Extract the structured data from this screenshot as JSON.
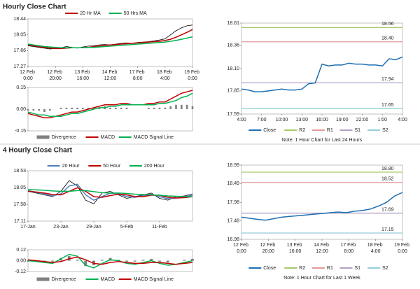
{
  "chart_data": [
    {
      "type": "line",
      "title": "Hourly Close Chart",
      "legend": "top",
      "xlim": [
        0,
        120
      ],
      "x": [
        0,
        4,
        8,
        12,
        16,
        20,
        24,
        28,
        32,
        36,
        40,
        44,
        48,
        52,
        56,
        60,
        64,
        68,
        72,
        76,
        80,
        84,
        88,
        92,
        96,
        100,
        104,
        108,
        112,
        116,
        120
      ],
      "xticks": [
        {
          "value": 0,
          "label": "12 Feb 0:00"
        },
        {
          "value": 20,
          "label": "12 Feb 20:00"
        },
        {
          "value": 40,
          "label": "13 Feb 16:00"
        },
        {
          "value": 60,
          "label": "14 Feb 12:00"
        },
        {
          "value": 80,
          "label": "17 Feb 8:00"
        },
        {
          "value": 100,
          "label": "18 Feb 4:00"
        },
        {
          "value": 120,
          "label": "19 Feb 0:00"
        }
      ],
      "ylim": [
        17.27,
        18.44
      ],
      "yticks": [
        17.27,
        17.66,
        18.05,
        18.44
      ],
      "series": [
        {
          "color": "#000000",
          "values": [
            17.78,
            17.76,
            17.74,
            17.72,
            17.7,
            17.71,
            17.73,
            17.76,
            17.74,
            17.72,
            17.75,
            17.77,
            17.78,
            17.8,
            17.81,
            17.8,
            17.82,
            17.84,
            17.85,
            17.84,
            17.86,
            17.87,
            17.88,
            17.9,
            17.92,
            17.95,
            18.05,
            18.15,
            18.22,
            18.27,
            18.29
          ]
        },
        {
          "name": "20 Hr MA",
          "color": "#c00000",
          "values": [
            17.8,
            17.78,
            17.76,
            17.74,
            17.72,
            17.71,
            17.71,
            17.72,
            17.73,
            17.73,
            17.73,
            17.74,
            17.76,
            17.77,
            17.79,
            17.8,
            17.81,
            17.82,
            17.83,
            17.84,
            17.85,
            17.86,
            17.87,
            17.88,
            17.89,
            17.91,
            17.94,
            17.99,
            18.05,
            18.11,
            18.18
          ]
        },
        {
          "name": "50 Hrs MA",
          "color": "#00b050",
          "values": [
            17.82,
            17.8,
            17.78,
            17.76,
            17.75,
            17.74,
            17.73,
            17.73,
            17.73,
            17.73,
            17.73,
            17.74,
            17.74,
            17.75,
            17.76,
            17.77,
            17.78,
            17.79,
            17.8,
            17.81,
            17.82,
            17.83,
            17.84,
            17.85,
            17.86,
            17.87,
            17.89,
            17.91,
            17.94,
            17.97,
            18.0
          ]
        }
      ]
    },
    {
      "type": "line",
      "legend": "bottom",
      "xlim": [
        0,
        120
      ],
      "x": [
        0,
        4,
        8,
        12,
        16,
        20,
        24,
        28,
        32,
        36,
        40,
        44,
        48,
        52,
        56,
        60,
        64,
        68,
        72,
        76,
        80,
        84,
        88,
        92,
        96,
        100,
        104,
        108,
        112,
        116,
        120
      ],
      "ylim": [
        -0.15,
        0.15
      ],
      "yticks": [
        -0.15,
        {
          "value": 0,
          "label": "0.00"
        },
        0.15
      ],
      "series": [
        {
          "name": "Divergence",
          "style": "bar",
          "color": "#808080",
          "values": [
            -0.01,
            -0.01,
            -0.01,
            -0.02,
            -0.01,
            0,
            0.01,
            0.01,
            0.01,
            0.01,
            0.01,
            0.01,
            0.01,
            0.01,
            0.02,
            0.01,
            0.01,
            0.01,
            0.01,
            0,
            0,
            0,
            0.01,
            0.01,
            0.01,
            0.01,
            0.02,
            0.03,
            0.03,
            0.03,
            0.02
          ]
        },
        {
          "name": "MACD",
          "color": "#c00000",
          "values": [
            -0.03,
            -0.04,
            -0.05,
            -0.06,
            -0.06,
            -0.05,
            -0.04,
            -0.03,
            -0.02,
            -0.02,
            -0.01,
            0,
            0.01,
            0.02,
            0.03,
            0.03,
            0.03,
            0.04,
            0.04,
            0.03,
            0.03,
            0.03,
            0.04,
            0.04,
            0.05,
            0.05,
            0.07,
            0.09,
            0.11,
            0.12,
            0.13
          ]
        },
        {
          "name": "MACD Signal Line",
          "color": "#00b050",
          "values": [
            -0.02,
            -0.03,
            -0.04,
            -0.04,
            -0.05,
            -0.05,
            -0.05,
            -0.04,
            -0.03,
            -0.03,
            -0.02,
            -0.01,
            0,
            0.01,
            0.01,
            0.02,
            0.02,
            0.03,
            0.03,
            0.03,
            0.03,
            0.03,
            0.03,
            0.03,
            0.04,
            0.04,
            0.05,
            0.06,
            0.08,
            0.09,
            0.11
          ]
        }
      ]
    },
    {
      "type": "line",
      "legend": "bottom",
      "note": "Note: 1 Hour Chart for Last 24 Hours",
      "xlim": [
        0,
        24
      ],
      "x": [
        0,
        1,
        2,
        3,
        4,
        5,
        6,
        7,
        8,
        9,
        10,
        11,
        12,
        13,
        14,
        15,
        16,
        17,
        18,
        19,
        20,
        21,
        22,
        23,
        24
      ],
      "xticks": [
        {
          "value": 0,
          "label": "4:00"
        },
        {
          "value": 3,
          "label": "7:00"
        },
        {
          "value": 6,
          "label": "10:00"
        },
        {
          "value": 9,
          "label": "13:00"
        },
        {
          "value": 12,
          "label": "16:00"
        },
        {
          "value": 15,
          "label": "19:00"
        },
        {
          "value": 18,
          "label": "22:00"
        },
        {
          "value": 21,
          "label": "1:00"
        },
        {
          "value": 24,
          "label": "4:00"
        }
      ],
      "ylim": [
        17.59,
        18.61
      ],
      "yticks": [
        17.59,
        17.85,
        {
          "value": 18.1,
          "label": "18.10"
        },
        18.36,
        18.61
      ],
      "series": [
        {
          "name": "Close",
          "color": "#1f6fb2",
          "values": [
            17.87,
            17.86,
            17.84,
            17.84,
            17.85,
            17.86,
            17.87,
            17.86,
            17.86,
            17.87,
            17.93,
            17.94,
            18.15,
            18.13,
            18.14,
            18.14,
            18.16,
            18.15,
            18.15,
            18.14,
            18.14,
            18.13,
            18.21,
            18.2,
            18.23
          ]
        }
      ],
      "levels": [
        {
          "name": "R2",
          "color": "#a6c96a",
          "value": 18.56,
          "value_label": "18.56"
        },
        {
          "name": "R1",
          "color": "#e39a9a",
          "value": 18.4,
          "value_label": "18.40"
        },
        {
          "name": "S1",
          "color": "#b3a2c7",
          "value": 17.94,
          "value_label": "17.94"
        },
        {
          "name": "S2",
          "color": "#93cddd",
          "value": 17.65,
          "value_label": "17.65"
        }
      ]
    },
    {
      "type": "line",
      "title": "4 Hourly Close Chart",
      "legend": "top",
      "xlim": [
        0,
        120
      ],
      "x": [
        0,
        6,
        12,
        18,
        24,
        30,
        36,
        42,
        48,
        54,
        60,
        66,
        72,
        78,
        84,
        90,
        96,
        102,
        108,
        114,
        120
      ],
      "xticks": [
        {
          "value": 0,
          "label": "17-Jan"
        },
        {
          "value": 24,
          "label": "23-Jan"
        },
        {
          "value": 48,
          "label": "29-Jan"
        },
        {
          "value": 72,
          "label": "5-Feb"
        },
        {
          "value": 96,
          "label": "11-Feb"
        }
      ],
      "ylim": [
        17.11,
        18.53
      ],
      "yticks": [
        17.11,
        17.58,
        18.05,
        18.53
      ],
      "series": [
        {
          "color": "#000000",
          "values": [
            17.95,
            17.9,
            17.85,
            17.8,
            17.95,
            18.25,
            18.1,
            17.7,
            17.6,
            17.9,
            17.95,
            17.85,
            17.75,
            17.8,
            17.85,
            17.9,
            17.75,
            17.7,
            17.8,
            17.82,
            17.88
          ]
        },
        {
          "name": "20 Hour",
          "color": "#4f81bd",
          "values": [
            17.97,
            17.92,
            17.87,
            17.82,
            17.88,
            18.1,
            18.15,
            17.85,
            17.7,
            17.8,
            17.9,
            17.88,
            17.8,
            17.78,
            17.83,
            17.87,
            17.8,
            17.74,
            17.76,
            17.8,
            17.84
          ]
        },
        {
          "name": "50 Hour",
          "color": "#c00000",
          "values": [
            17.95,
            17.93,
            17.9,
            17.86,
            17.85,
            17.95,
            18.05,
            17.95,
            17.8,
            17.78,
            17.83,
            17.87,
            17.85,
            17.8,
            17.8,
            17.84,
            17.84,
            17.78,
            17.76,
            17.77,
            17.8
          ]
        },
        {
          "name": "200 Hour",
          "color": "#00b050",
          "values": [
            18.0,
            17.99,
            17.98,
            17.96,
            17.95,
            17.95,
            17.97,
            17.97,
            17.94,
            17.91,
            17.9,
            17.9,
            17.89,
            17.87,
            17.86,
            17.85,
            17.84,
            17.82,
            17.81,
            17.8,
            17.8
          ]
        }
      ]
    },
    {
      "type": "line",
      "legend": "bottom",
      "xlim": [
        0,
        120
      ],
      "x": [
        0,
        6,
        12,
        18,
        24,
        30,
        36,
        42,
        48,
        54,
        60,
        66,
        72,
        78,
        84,
        90,
        96,
        102,
        108,
        114,
        120
      ],
      "ylim": [
        -0.12,
        0.12
      ],
      "yticks": [
        -0.12,
        {
          "value": 0,
          "label": "0.00"
        },
        0.12
      ],
      "series": [
        {
          "name": "Divergence",
          "style": "bar",
          "color": "#808080",
          "values": [
            -0.01,
            -0.01,
            -0.01,
            -0.01,
            0.03,
            0.05,
            0.01,
            -0.06,
            -0.05,
            0.01,
            0.03,
            0.01,
            -0.01,
            -0.01,
            0.01,
            0.02,
            -0.01,
            -0.02,
            0,
            0.01,
            0.02
          ]
        },
        {
          "name": "MACD",
          "color": "#00b050",
          "values": [
            0,
            -0.01,
            -0.02,
            -0.03,
            0.02,
            0.07,
            0.05,
            -0.05,
            -0.08,
            -0.03,
            0.01,
            0,
            -0.03,
            -0.04,
            -0.02,
            0,
            -0.03,
            -0.05,
            -0.04,
            -0.02,
            0
          ]
        },
        {
          "name": "MACD Signal Line",
          "color": "#c00000",
          "values": [
            0.01,
            0,
            -0.01,
            -0.02,
            -0.01,
            0.02,
            0.04,
            0.01,
            -0.03,
            -0.04,
            -0.02,
            -0.01,
            -0.02,
            -0.03,
            -0.03,
            -0.02,
            -0.02,
            -0.03,
            -0.04,
            -0.03,
            -0.02
          ]
        }
      ]
    },
    {
      "type": "line",
      "legend": "bottom",
      "note": "Note: 1 Hour Chart for Last 1 Week",
      "xlim": [
        0,
        120
      ],
      "x": [
        0,
        6,
        12,
        18,
        24,
        30,
        36,
        42,
        48,
        54,
        60,
        66,
        72,
        78,
        84,
        90,
        96,
        102,
        108,
        114,
        120
      ],
      "xticks": [
        {
          "value": 0,
          "label": "12 Feb 0:00"
        },
        {
          "value": 20,
          "label": "12 Feb 20:00"
        },
        {
          "value": 40,
          "label": "13 Feb 16:00"
        },
        {
          "value": 60,
          "label": "14 Feb 12:00"
        },
        {
          "value": 80,
          "label": "17 Feb 8:00"
        },
        {
          "value": 100,
          "label": "18 Feb 4:00"
        },
        {
          "value": 120,
          "label": "19 Feb 0:00"
        }
      ],
      "ylim": [
        16.98,
        18.99
      ],
      "yticks": [
        16.98,
        17.48,
        17.98,
        18.49,
        18.99
      ],
      "series": [
        {
          "name": "Close",
          "color": "#1f6fb2",
          "values": [
            17.58,
            17.55,
            17.52,
            17.5,
            17.54,
            17.58,
            17.6,
            17.62,
            17.64,
            17.66,
            17.68,
            17.7,
            17.72,
            17.7,
            17.74,
            17.76,
            17.8,
            17.88,
            17.98,
            18.15,
            18.25
          ]
        }
      ],
      "levels": [
        {
          "name": "R2",
          "color": "#a6c96a",
          "value": 18.8,
          "value_label": "18.80"
        },
        {
          "name": "R1",
          "color": "#e39a9a",
          "value": 18.52,
          "value_label": "18.52"
        },
        {
          "name": "S1",
          "color": "#b3a2c7",
          "value": 17.69,
          "value_label": "17.69"
        },
        {
          "name": "S2",
          "color": "#93cddd",
          "value": 17.15,
          "value_label": "17.15"
        }
      ]
    }
  ]
}
